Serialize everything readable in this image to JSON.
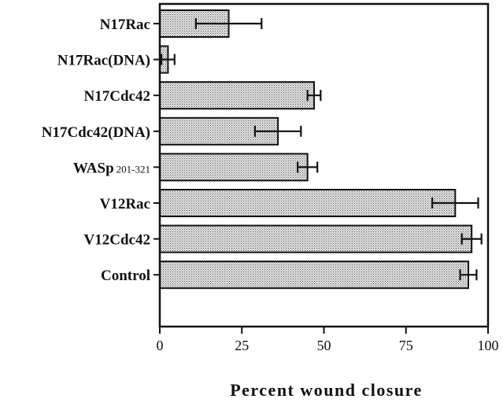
{
  "chart_data": {
    "type": "bar",
    "orientation": "horizontal",
    "categories": [
      {
        "label": "N17Rac",
        "sub": ""
      },
      {
        "label": "N17Rac(DNA)",
        "sub": ""
      },
      {
        "label": "N17Cdc42",
        "sub": ""
      },
      {
        "label": "N17Cdc42(DNA)",
        "sub": ""
      },
      {
        "label": "WASp",
        "sub": "201-321"
      },
      {
        "label": "V12Rac",
        "sub": ""
      },
      {
        "label": "V12Cdc42",
        "sub": ""
      },
      {
        "label": "Control",
        "sub": ""
      }
    ],
    "values": [
      21,
      2.5,
      47,
      36,
      45,
      90,
      95,
      94
    ],
    "errors": [
      10,
      2,
      2,
      7,
      3,
      7,
      3,
      2.5
    ],
    "title": "",
    "xlabel": "Percent wound closure",
    "ylabel": "",
    "xlim": [
      0,
      100
    ],
    "xticks": [
      0,
      25,
      50,
      75,
      100
    ],
    "xtick_labels": [
      "0",
      "25",
      "50",
      "75",
      "100"
    ],
    "grid": false,
    "bar_fill": "stippled-gray",
    "colors": {
      "bar": "#c9c9c9",
      "outline": "#111111"
    }
  }
}
